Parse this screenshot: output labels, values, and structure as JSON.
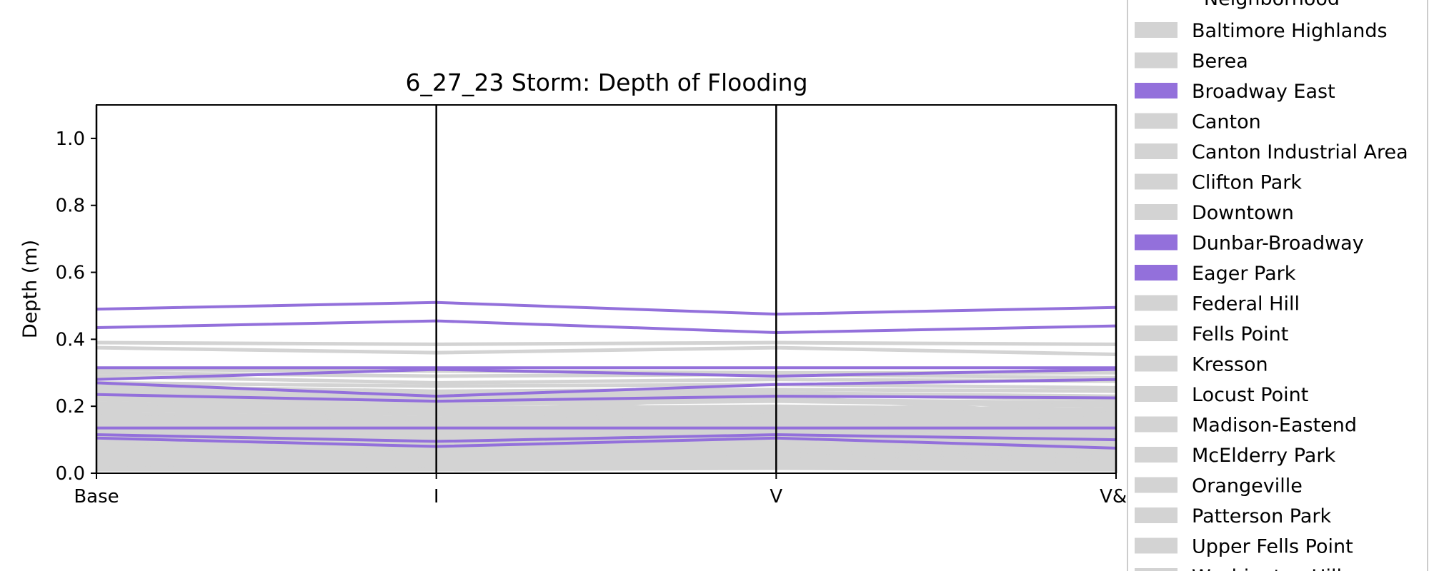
{
  "chart_data": {
    "type": "line",
    "title": "6_27_23 Storm: Depth of Flooding",
    "xlabel": "",
    "ylabel": "Depth (m)",
    "categories": [
      "Base",
      "I",
      "V",
      "V&I"
    ],
    "ylim": [
      0.0,
      1.1
    ],
    "yticks": [
      "0.0",
      "0.2",
      "0.4",
      "0.6",
      "0.8",
      "1.0"
    ],
    "legend": {
      "title": "Neighborhood",
      "placement": "right",
      "entries": [
        {
          "label": "Baltimore Highlands",
          "highlight": false
        },
        {
          "label": "Berea",
          "highlight": false
        },
        {
          "label": "Broadway East",
          "highlight": true
        },
        {
          "label": "Canton",
          "highlight": false
        },
        {
          "label": "Canton Industrial Area",
          "highlight": false
        },
        {
          "label": "Clifton Park",
          "highlight": false
        },
        {
          "label": "Downtown",
          "highlight": false
        },
        {
          "label": "Dunbar-Broadway",
          "highlight": true
        },
        {
          "label": "Eager Park",
          "highlight": true
        },
        {
          "label": "Federal Hill",
          "highlight": false
        },
        {
          "label": "Fells Point",
          "highlight": false
        },
        {
          "label": "Kresson",
          "highlight": false
        },
        {
          "label": "Locust Point",
          "highlight": false
        },
        {
          "label": "Madison-Eastend",
          "highlight": false
        },
        {
          "label": "McElderry Park",
          "highlight": false
        },
        {
          "label": "Orangeville",
          "highlight": false
        },
        {
          "label": "Patterson Park",
          "highlight": false
        },
        {
          "label": "Upper Fells Point",
          "highlight": false
        },
        {
          "label": "Washington Hill",
          "highlight": false
        }
      ]
    },
    "highlighted_series": [
      [
        0.49,
        0.51,
        0.475,
        0.495
      ],
      [
        0.435,
        0.455,
        0.42,
        0.44
      ],
      [
        0.315,
        0.315,
        0.315,
        0.315
      ],
      [
        0.28,
        0.31,
        0.29,
        0.31
      ],
      [
        0.27,
        0.23,
        0.265,
        0.28
      ],
      [
        0.235,
        0.215,
        0.23,
        0.225
      ],
      [
        0.135,
        0.135,
        0.135,
        0.135
      ],
      [
        0.115,
        0.095,
        0.115,
        0.1
      ],
      [
        0.105,
        0.08,
        0.105,
        0.075
      ]
    ],
    "background_series": [
      [
        0.39,
        0.385,
        0.39,
        0.385
      ],
      [
        0.375,
        0.36,
        0.375,
        0.355
      ],
      [
        0.31,
        0.305,
        0.3,
        0.3
      ],
      [
        0.3,
        0.29,
        0.295,
        0.285
      ],
      [
        0.29,
        0.27,
        0.28,
        0.275
      ],
      [
        0.27,
        0.26,
        0.265,
        0.255
      ],
      [
        0.26,
        0.245,
        0.25,
        0.245
      ],
      [
        0.25,
        0.235,
        0.24,
        0.23
      ],
      [
        0.24,
        0.225,
        0.235,
        0.22
      ],
      [
        0.23,
        0.215,
        0.22,
        0.21
      ],
      [
        0.22,
        0.205,
        0.215,
        0.2
      ],
      [
        0.21,
        0.195,
        0.2,
        0.19
      ],
      [
        0.205,
        0.19,
        0.195,
        0.185
      ],
      [
        0.2,
        0.18,
        0.19,
        0.175
      ],
      [
        0.19,
        0.175,
        0.18,
        0.17
      ],
      [
        0.18,
        0.165,
        0.175,
        0.16
      ],
      [
        0.175,
        0.16,
        0.165,
        0.155
      ],
      [
        0.17,
        0.15,
        0.16,
        0.145
      ],
      [
        0.16,
        0.145,
        0.155,
        0.14
      ],
      [
        0.155,
        0.14,
        0.15,
        0.135
      ],
      [
        0.15,
        0.13,
        0.14,
        0.125
      ],
      [
        0.14,
        0.125,
        0.135,
        0.12
      ],
      [
        0.13,
        0.115,
        0.125,
        0.11
      ],
      [
        0.125,
        0.11,
        0.12,
        0.105
      ],
      [
        0.12,
        0.1,
        0.115,
        0.095
      ],
      [
        0.11,
        0.095,
        0.105,
        0.09
      ],
      [
        0.1,
        0.085,
        0.1,
        0.08
      ],
      [
        0.095,
        0.08,
        0.095,
        0.075
      ],
      [
        0.09,
        0.07,
        0.085,
        0.065
      ],
      [
        0.085,
        0.065,
        0.08,
        0.06
      ],
      [
        0.08,
        0.06,
        0.075,
        0.055
      ],
      [
        0.07,
        0.055,
        0.07,
        0.05
      ],
      [
        0.065,
        0.05,
        0.065,
        0.045
      ],
      [
        0.06,
        0.045,
        0.06,
        0.04
      ],
      [
        0.05,
        0.04,
        0.055,
        0.035
      ],
      [
        0.045,
        0.035,
        0.05,
        0.03
      ],
      [
        0.04,
        0.03,
        0.045,
        0.025
      ],
      [
        0.03,
        0.025,
        0.035,
        0.02
      ],
      [
        0.025,
        0.02,
        0.03,
        0.018
      ],
      [
        0.02,
        0.015,
        0.025,
        0.015
      ],
      [
        0.015,
        0.012,
        0.02,
        0.012
      ],
      [
        0.01,
        0.01,
        0.015,
        0.01
      ],
      [
        0.18,
        0.24,
        0.17,
        0.21
      ],
      [
        0.14,
        0.2,
        0.13,
        0.18
      ],
      [
        0.24,
        0.18,
        0.23,
        0.17
      ],
      [
        0.1,
        0.14,
        0.09,
        0.12
      ]
    ],
    "colors": {
      "highlight": "#9370db",
      "background": "#d3d3d3",
      "axis": "#000000"
    }
  }
}
